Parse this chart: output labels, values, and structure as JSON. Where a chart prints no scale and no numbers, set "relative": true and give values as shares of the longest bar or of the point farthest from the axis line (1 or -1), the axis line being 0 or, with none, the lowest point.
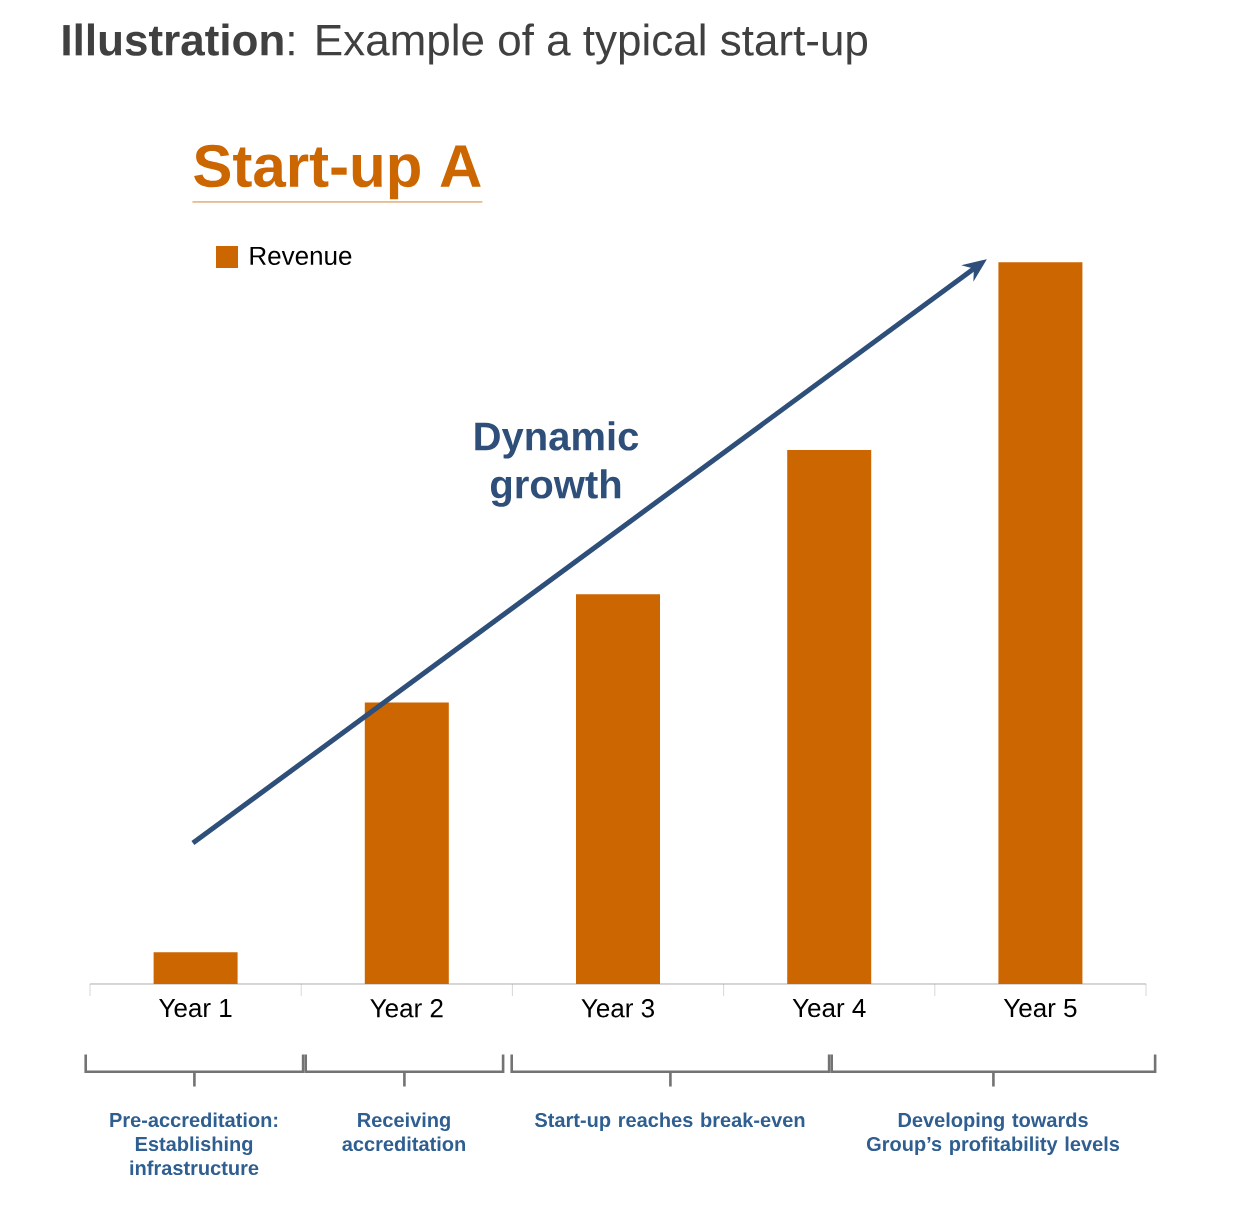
{
  "chart_data": {
    "type": "bar",
    "title": "**Illustration**: Example of a typical start-up",
    "subtitle": "Start-up A",
    "categories": [
      "Year 1",
      "Year 2",
      "Year 3",
      "Year 4",
      "Year 5"
    ],
    "series": [
      {
        "name": "Revenue",
        "color": "#cc6600",
        "values": [
          0.044,
          0.39,
          0.54,
          0.74,
          1
        ]
      }
    ],
    "relative": true,
    "legend": "top left",
    "annotations": [
      "Dynamic growth",
      "Pre-accreditation: Establishing infrastructure",
      "Receiving accreditation",
      "Start-up reaches break-even",
      "Developing towards Group’s profitability levels"
    ]
  }
}
